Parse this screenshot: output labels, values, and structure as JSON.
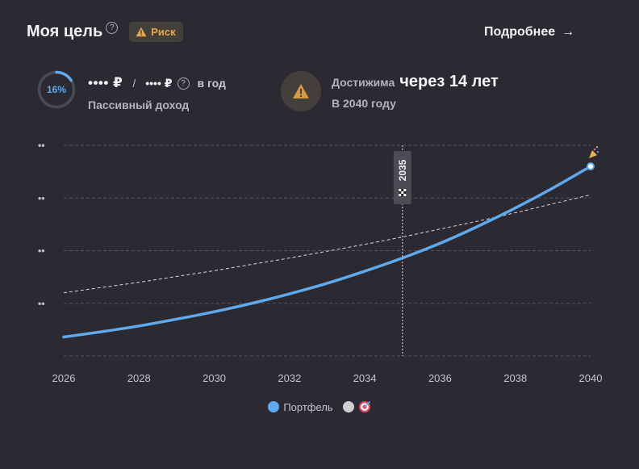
{
  "header": {
    "title": "Моя цель",
    "help_glyph": "?",
    "risk_label": "Риск",
    "details_label": "Подробнее",
    "details_arrow": "→"
  },
  "progress": {
    "label": "16%",
    "fraction": 0.16,
    "color": "#62a9ec"
  },
  "income": {
    "target_amount": "•••• ₽",
    "slash": "/",
    "current_amount": "•••• ₽",
    "per_year": "в год",
    "subtitle": "Пассивный доход"
  },
  "reach": {
    "label": "Достижима",
    "value": "через 14 лет",
    "subtitle": "В 2040 году"
  },
  "chart_data": {
    "type": "line",
    "x": [
      2026,
      2027,
      2028,
      2029,
      2030,
      2031,
      2032,
      2033,
      2034,
      2035,
      2036,
      2037,
      2038,
      2039,
      2040
    ],
    "x_tick_labels": [
      "2026",
      "2028",
      "2030",
      "2032",
      "2034",
      "2036",
      "2038",
      "2040"
    ],
    "y_tick_labels": [
      "••",
      "••",
      "••",
      "••"
    ],
    "xlim": [
      2026,
      2040
    ],
    "ylim": [
      0,
      4
    ],
    "grid": true,
    "marker_year": "2035",
    "series": [
      {
        "name": "Портфель",
        "color": "#5fa9ec",
        "values": [
          0.36,
          0.46,
          0.57,
          0.7,
          0.84,
          1.0,
          1.18,
          1.38,
          1.61,
          1.86,
          2.14,
          2.46,
          2.81,
          3.19,
          3.6
        ]
      },
      {
        "name": "",
        "color": "#d9d9de",
        "style": "dashed",
        "values": [
          1.2,
          1.3,
          1.4,
          1.51,
          1.62,
          1.74,
          1.86,
          1.99,
          2.12,
          2.26,
          2.41,
          2.56,
          2.72,
          2.89,
          3.06
        ]
      }
    ]
  },
  "legend": {
    "portfolio_label": "Портфель",
    "portfolio_color": "#5fa9ec",
    "target_color": "#cfcfd3",
    "target_icon": "target-icon"
  },
  "icons": {
    "warning": "warning-triangle-icon",
    "celebration": "party-popper-icon",
    "finish": "checkered-flag-icon"
  }
}
